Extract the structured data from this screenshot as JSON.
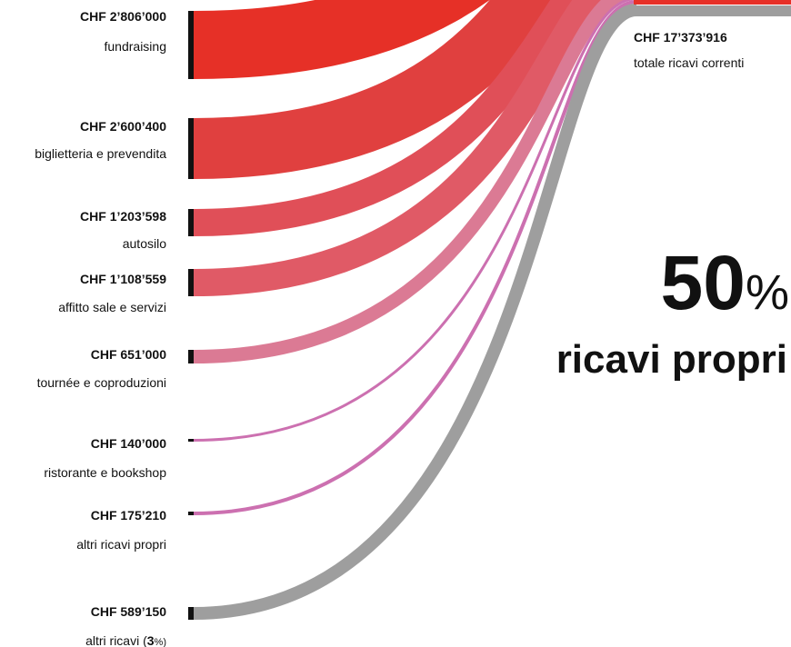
{
  "sources": [
    {
      "amount": "CHF 2’806’000",
      "label": "fundraising"
    },
    {
      "amount": "CHF 2’600’400",
      "label": "biglietteria e prevendita"
    },
    {
      "amount": "CHF 1’203’598",
      "label": "autosilo"
    },
    {
      "amount": "CHF 1’108’559",
      "label": "affitto sale e servizi"
    },
    {
      "amount": "CHF 651’000",
      "label": "tournée e coproduzioni"
    },
    {
      "amount": "CHF 140’000",
      "label": "ristorante e bookshop"
    },
    {
      "amount": "CHF 175’210",
      "label": "altri ricavi propri"
    },
    {
      "amount": "CHF 589’150",
      "label_parts": [
        "altri ricavi (",
        "3",
        "%)"
      ]
    }
  ],
  "total": {
    "amount": "CHF 17’373’916",
    "label": "totale ricavi correnti"
  },
  "highlight": {
    "number": "50",
    "unit": "%",
    "label": "ricavi propri"
  }
}
